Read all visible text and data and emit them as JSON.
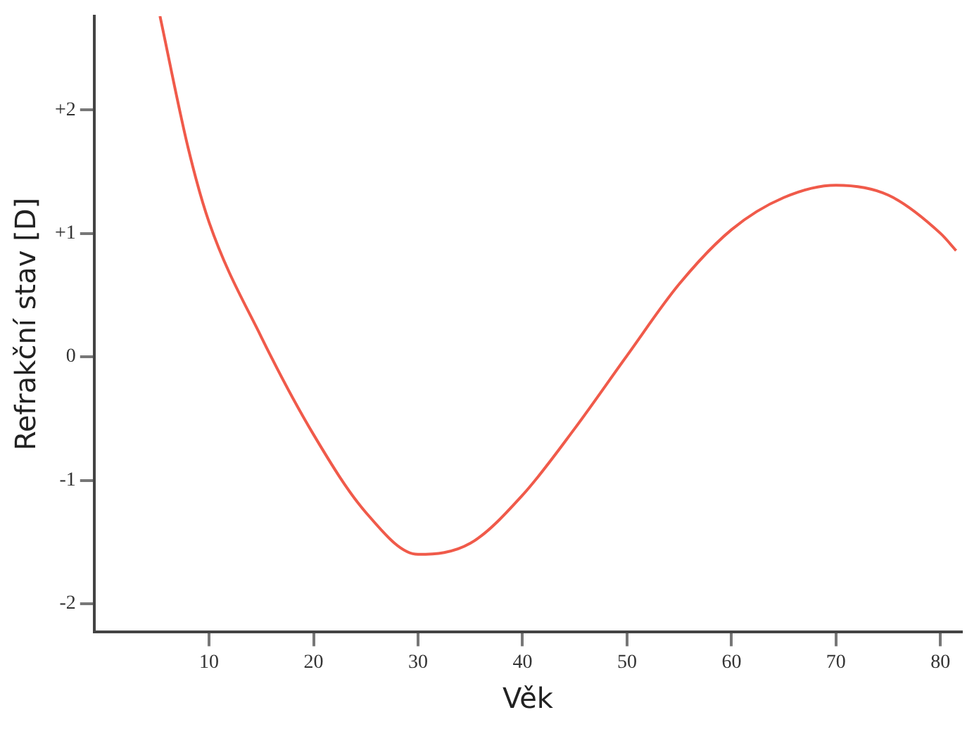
{
  "chart_data": {
    "type": "line",
    "xlabel": "Věk",
    "ylabel": "Refrakční stav [D]",
    "xlim": [
      -1,
      82
    ],
    "xticks": [
      10,
      20,
      30,
      40,
      50,
      60,
      70,
      80
    ],
    "ylim": [
      -2.23,
      2.76
    ],
    "yticks": [
      {
        "value": 2,
        "label": "+2"
      },
      {
        "value": 1,
        "label": "+1"
      },
      0,
      -1,
      -2
    ],
    "grid": false,
    "marker": "none",
    "line_style": "solid",
    "series": [
      {
        "color": "#f05a4a",
        "x": [
          5.3,
          8,
          10,
          15,
          20,
          25,
          30,
          35,
          40,
          45,
          50,
          55,
          60,
          65,
          70,
          75,
          80,
          81.5
        ],
        "values": [
          2.76,
          1.69,
          1.09,
          0.16,
          -0.63,
          -1.26,
          -1.6,
          -1.51,
          -1.12,
          -0.58,
          0.01,
          0.59,
          1.03,
          1.29,
          1.39,
          1.31,
          1.0,
          0.86
        ]
      }
    ]
  }
}
